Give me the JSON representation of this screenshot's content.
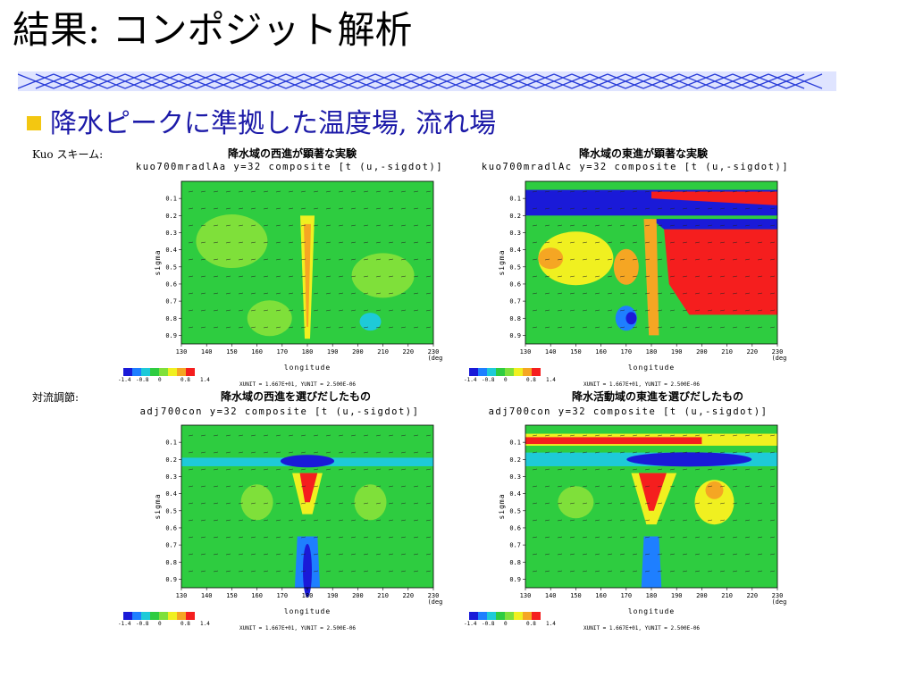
{
  "slide": {
    "title": "結果: コンポジット解析",
    "subtitle": "降水ピークに準拠した温度場, 流れ場",
    "accent_color": "#f3c711",
    "subtitle_color": "#1c1aa8",
    "banner_color": "#2a3dd8"
  },
  "rows": [
    {
      "label": "Kuo スキーム:"
    },
    {
      "label": "対流調節:"
    }
  ],
  "panels": [
    {
      "title": "降水域の西進が顕著な実験",
      "header": "kuo700mradlAa y=32 composite [t (u,-sigdot)]",
      "bg": "#2ecc40",
      "features": "west-weak"
    },
    {
      "title": "降水域の東進が顕著な実験",
      "header": "kuo700mradlAc y=32 composite [t (u,-sigdot)]",
      "bg": "#2ecc40",
      "features": "east-strong"
    },
    {
      "title": "降水域の西進を選びだしたもの",
      "header": "adj700con y=32 composite [t (u,-sigdot)]",
      "bg": "#2ecc40",
      "features": "west-adj"
    },
    {
      "title": "降水活動域の東進を選びだしたもの",
      "header": "adj700con y=32 composite [t (u,-sigdot)]",
      "bg": "#2ecc40",
      "features": "east-adj"
    }
  ],
  "axes": {
    "xlabel": "longitude",
    "xunit": "(deg)",
    "ylabel": "sigma",
    "xticks": [
      "130",
      "140",
      "150",
      "160",
      "170",
      "180",
      "190",
      "200",
      "210",
      "220",
      "230"
    ],
    "yticks": [
      "0.1",
      "0.2",
      "0.3",
      "0.4",
      "0.5",
      "0.6",
      "0.7",
      "0.8",
      "0.9"
    ]
  },
  "colorbar": {
    "colors": [
      "#1a1ad8",
      "#1e7fff",
      "#1ecad8",
      "#2ecc40",
      "#7fe03a",
      "#f0f020",
      "#f5a623",
      "#f51e1e"
    ],
    "labels": [
      "-1.4",
      "-0.8",
      "0",
      "0.8",
      "1.4"
    ]
  },
  "unit_note": "XUNIT = 1.667E+01, YUNIT = 2.500E-06"
}
